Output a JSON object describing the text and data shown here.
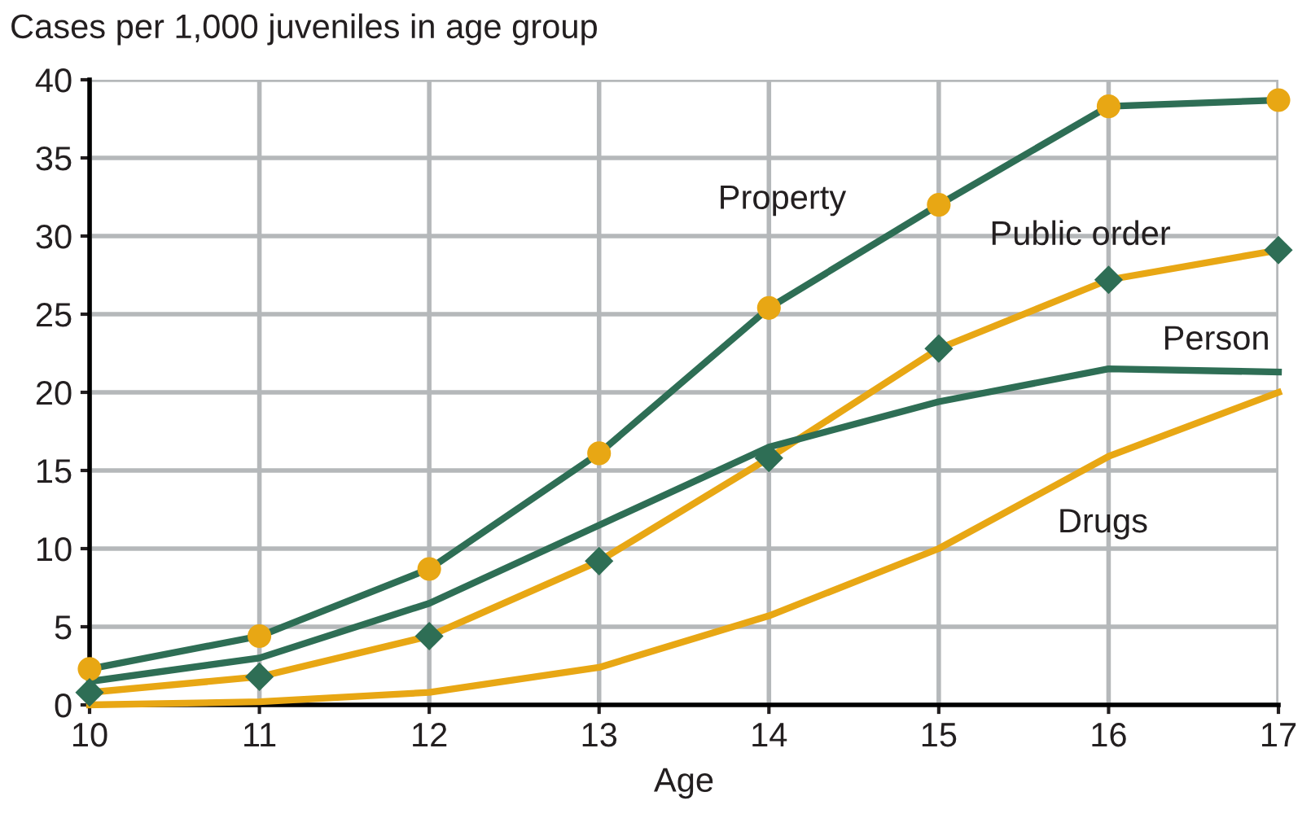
{
  "chart_data": {
    "type": "line",
    "ylabel": "Cases per 1,000 juveniles in age group",
    "xlabel": "Age",
    "x": [
      10,
      11,
      12,
      13,
      14,
      15,
      16,
      17
    ],
    "series": [
      {
        "name": "Property",
        "color": "#2e6e55",
        "colors": [
          "#e8a714",
          "#e8a714",
          "#e8a714",
          "#e8a714",
          "#e8a714",
          "#e8a714",
          "#e8a714",
          "#e8a714"
        ],
        "marker": "circle",
        "values": [
          2.3,
          4.4,
          8.7,
          16.1,
          25.4,
          32.0,
          38.3,
          38.7
        ]
      },
      {
        "name": "Public order",
        "color": "#e8a714",
        "colors": [
          "#2e6e55",
          "#2e6e55",
          "#2e6e55",
          "#2e6e55",
          "#2e6e55",
          "#2e6e55",
          "#2e6e55",
          "#2e6e55"
        ],
        "marker": "diamond",
        "values": [
          0.8,
          1.8,
          4.4,
          9.2,
          15.8,
          22.8,
          27.2,
          29.1
        ]
      },
      {
        "name": "Person",
        "color": "#2e6e55",
        "marker": "none",
        "values": [
          1.5,
          3.0,
          6.5,
          11.5,
          16.5,
          19.4,
          21.5,
          21.3
        ]
      },
      {
        "name": "Drugs",
        "color": "#e8a714",
        "marker": "none",
        "values": [
          0.0,
          0.2,
          0.8,
          2.4,
          5.7,
          10.0,
          15.9,
          20.0
        ]
      }
    ],
    "xlim": [
      10,
      17
    ],
    "xticks": [
      10,
      11,
      12,
      13,
      14,
      15,
      16,
      17
    ],
    "ylim": [
      0,
      40
    ],
    "yticks": [
      0,
      5,
      10,
      15,
      20,
      25,
      30,
      35,
      40
    ],
    "grid": true
  }
}
